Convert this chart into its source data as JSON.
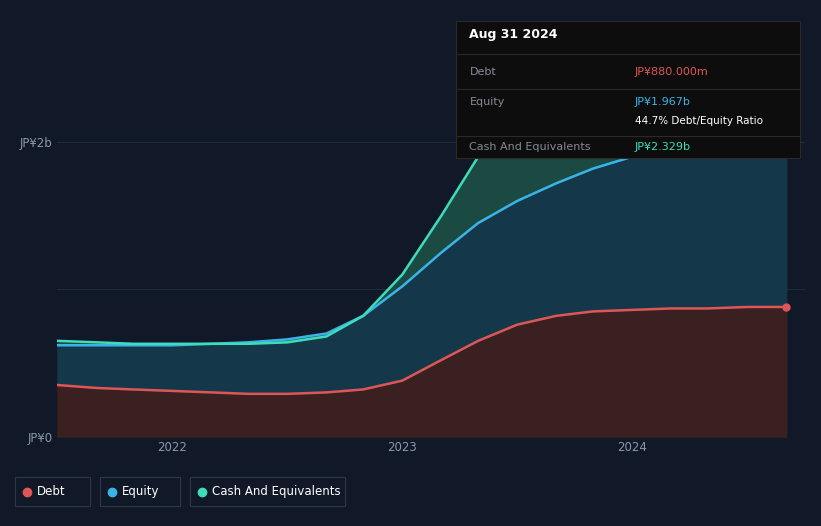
{
  "bg_color": "#111827",
  "plot_bg_color": "#111827",
  "grid_color": "#1e2d3d",
  "ylabel_2b": "JP¥2b",
  "ylabel_0": "JP¥0",
  "xlabel_ticks": [
    "2022",
    "2023",
    "2024"
  ],
  "legend_items": [
    "Debt",
    "Equity",
    "Cash And Equivalents"
  ],
  "legend_colors": [
    "#e05555",
    "#3ab4e8",
    "#3dddbb"
  ],
  "tooltip_title": "Aug 31 2024",
  "tooltip_debt_label": "Debt",
  "tooltip_debt_value": "JP¥880.000m",
  "tooltip_debt_color": "#e05555",
  "tooltip_equity_label": "Equity",
  "tooltip_equity_value": "JP¥1.967b",
  "tooltip_equity_color": "#3ab4e8",
  "tooltip_ratio": "44.7% Debt/Equity Ratio",
  "tooltip_ratio_color": "#ffffff",
  "tooltip_cash_label": "Cash And Equivalents",
  "tooltip_cash_value": "JP¥2.329b",
  "tooltip_cash_color": "#3dddbb",
  "x": [
    2021.5,
    2021.67,
    2021.83,
    2022.0,
    2022.17,
    2022.33,
    2022.5,
    2022.67,
    2022.83,
    2023.0,
    2023.17,
    2023.33,
    2023.5,
    2023.67,
    2023.83,
    2024.0,
    2024.17,
    2024.33,
    2024.5,
    2024.67
  ],
  "debt": [
    0.35,
    0.33,
    0.32,
    0.31,
    0.3,
    0.29,
    0.29,
    0.3,
    0.32,
    0.38,
    0.52,
    0.65,
    0.76,
    0.82,
    0.85,
    0.86,
    0.87,
    0.87,
    0.88,
    0.88
  ],
  "equity": [
    0.62,
    0.62,
    0.62,
    0.62,
    0.63,
    0.64,
    0.66,
    0.7,
    0.82,
    1.02,
    1.25,
    1.45,
    1.6,
    1.72,
    1.82,
    1.9,
    1.94,
    1.95,
    1.96,
    1.967
  ],
  "cash": [
    0.65,
    0.64,
    0.63,
    0.63,
    0.63,
    0.63,
    0.64,
    0.68,
    0.82,
    1.1,
    1.5,
    1.9,
    2.2,
    2.38,
    2.4,
    2.35,
    2.33,
    2.31,
    2.32,
    2.329
  ],
  "ylim": [
    0,
    2.5
  ],
  "xlim": [
    2021.5,
    2024.75
  ],
  "debt_color": "#e05555",
  "equity_color": "#3ab4e8",
  "cash_color": "#3dddbb",
  "debt_fill_color": "#3a2020",
  "equity_fill_color": "#14384a",
  "cash_fill_color": "#1a4a42"
}
